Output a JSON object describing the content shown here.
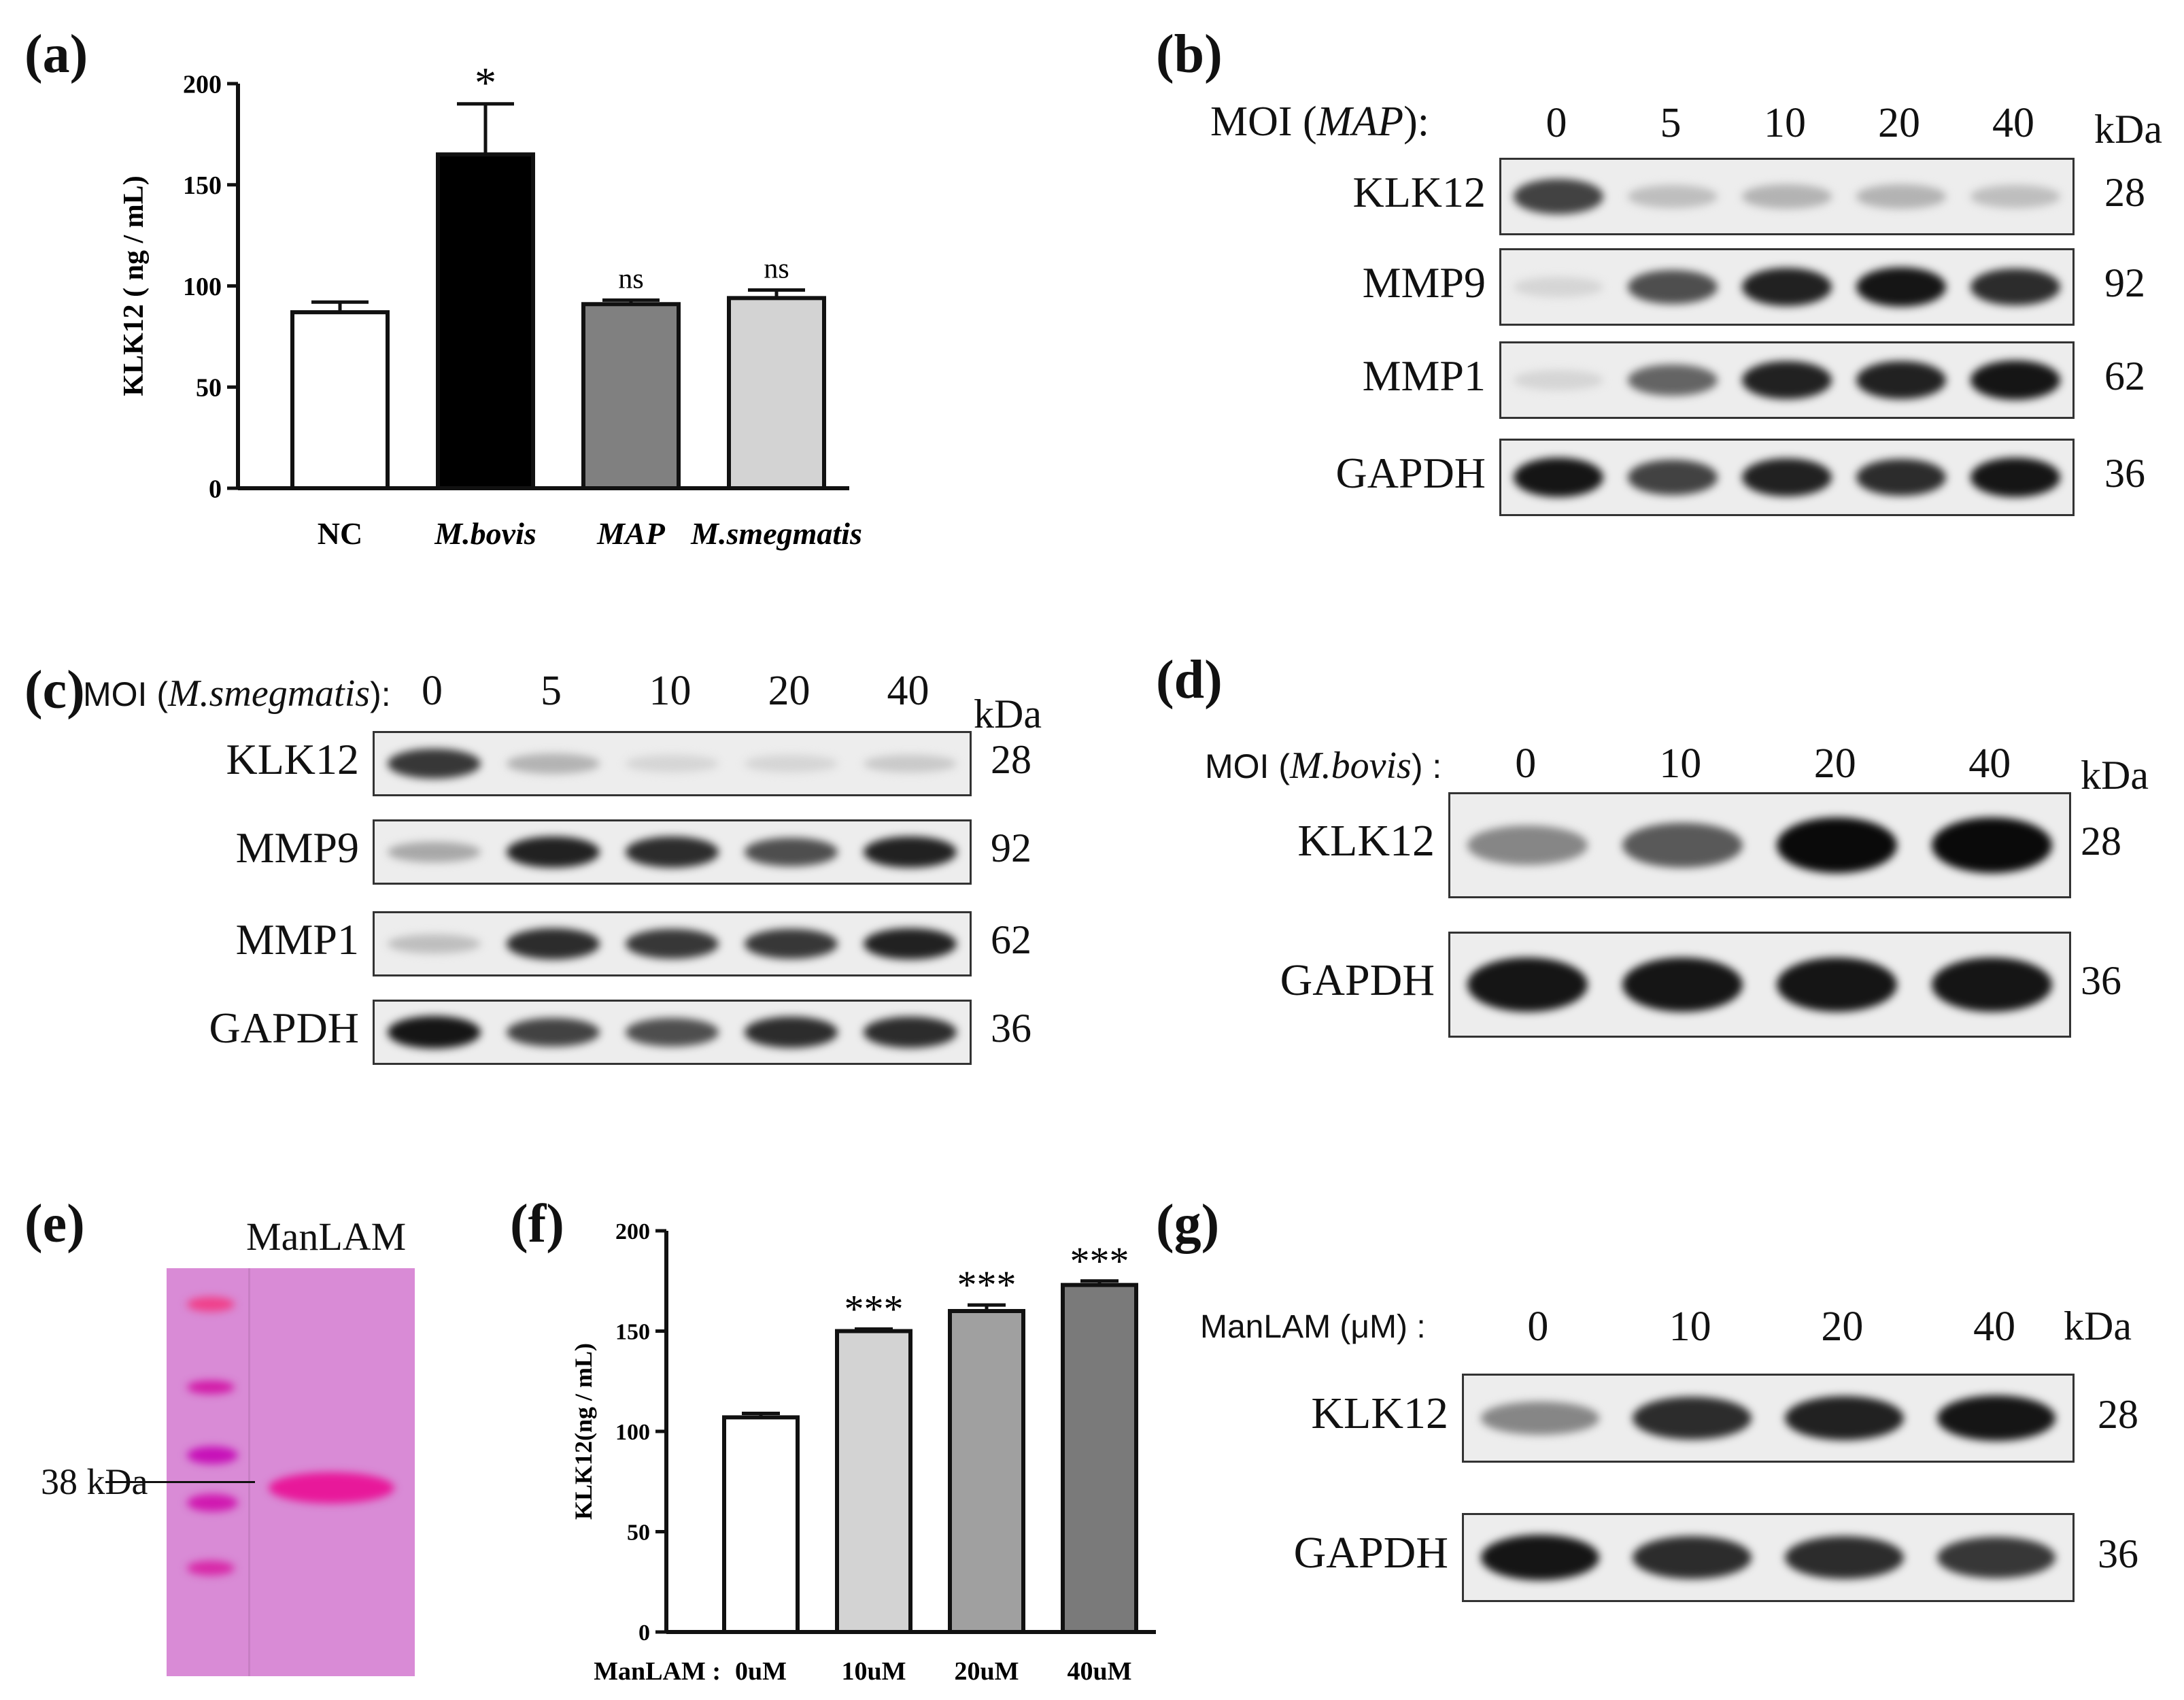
{
  "panels": {
    "a": {
      "label": "(a)",
      "chart_data": {
        "type": "bar",
        "categories": [
          "NC",
          "M.bovis",
          "MAP",
          "M.smegmatis"
        ],
        "categories_italic": [
          false,
          true,
          true,
          true
        ],
        "values": [
          87,
          165,
          91,
          94
        ],
        "errors": [
          5,
          25,
          2,
          4
        ],
        "significance": [
          "",
          "*",
          "ns",
          "ns"
        ],
        "bar_colors": [
          "#ffffff",
          "#000000",
          "#808080",
          "#d3d3d3"
        ],
        "ylabel": "KLK12 ( ng / mL)",
        "ylim": [
          0,
          200
        ],
        "yticks": [
          "0",
          "50",
          "100",
          "150",
          "200"
        ]
      }
    },
    "b": {
      "label": "(b)",
      "moi_prefix": "MOI (",
      "moi_strain": "MAP",
      "moi_suffix": "):",
      "lanes": [
        "0",
        "5",
        "10",
        "20",
        "40"
      ],
      "kda_header": "kDa",
      "rows": [
        {
          "name": "KLK12",
          "kda": "28",
          "intensity": [
            0.75,
            0.2,
            0.25,
            0.25,
            0.2
          ]
        },
        {
          "name": "MMP9",
          "kda": "92",
          "intensity": [
            0.1,
            0.7,
            0.9,
            0.95,
            0.85
          ]
        },
        {
          "name": "MMP1",
          "kda": "62",
          "intensity": [
            0.1,
            0.6,
            0.9,
            0.9,
            0.95
          ]
        },
        {
          "name": "GAPDH",
          "kda": "36",
          "intensity": [
            0.95,
            0.75,
            0.9,
            0.85,
            0.95
          ]
        }
      ]
    },
    "c": {
      "label": "(c)",
      "moi_prefix": "MOI (",
      "moi_strain": "M.smegmatis",
      "moi_suffix": "):",
      "lanes": [
        "0",
        "5",
        "10",
        "20",
        "40"
      ],
      "kda_header": "kDa",
      "rows": [
        {
          "name": "KLK12",
          "kda": "28",
          "intensity": [
            0.8,
            0.25,
            0.1,
            0.1,
            0.15
          ]
        },
        {
          "name": "MMP9",
          "kda": "92",
          "intensity": [
            0.3,
            0.9,
            0.85,
            0.7,
            0.9
          ]
        },
        {
          "name": "MMP1",
          "kda": "62",
          "intensity": [
            0.2,
            0.85,
            0.8,
            0.8,
            0.9
          ]
        },
        {
          "name": "GAPDH",
          "kda": "36",
          "intensity": [
            0.95,
            0.75,
            0.7,
            0.85,
            0.85
          ]
        }
      ]
    },
    "d": {
      "label": "(d)",
      "moi_prefix": "MOI (",
      "moi_strain": "M.bovis",
      "moi_suffix": ") :",
      "lanes": [
        "0",
        "10",
        "20",
        "40"
      ],
      "kda_header": "kDa",
      "rows": [
        {
          "name": "KLK12",
          "kda": "28",
          "intensity": [
            0.45,
            0.65,
            1.0,
            1.0
          ]
        },
        {
          "name": "GAPDH",
          "kda": "36",
          "intensity": [
            0.95,
            0.95,
            0.95,
            0.95
          ]
        }
      ]
    },
    "e": {
      "label": "(e)",
      "title": "ManLAM",
      "marker_label": "38 kDa",
      "gel_color": "#d98bd6",
      "band_color": "#e8189a"
    },
    "f": {
      "label": "(f)",
      "chart_data": {
        "type": "bar",
        "categories": [
          "0uM",
          "10uM",
          "20uM",
          "40uM"
        ],
        "x_prefix": "ManLAM :",
        "values": [
          107,
          150,
          160,
          173
        ],
        "errors": [
          2,
          1,
          3,
          2
        ],
        "significance": [
          "",
          "***",
          "***",
          "***"
        ],
        "bar_colors": [
          "#ffffff",
          "#d3d3d3",
          "#a0a0a0",
          "#7a7a7a"
        ],
        "ylabel": "KLK12(ng / mL)",
        "ylim": [
          0,
          200
        ],
        "yticks": [
          "0",
          "50",
          "100",
          "150",
          "200"
        ]
      }
    },
    "g": {
      "label": "(g)",
      "moi_text": "ManLAM (μM) :",
      "lanes": [
        "0",
        "10",
        "20",
        "40"
      ],
      "kda_header": "kDa",
      "rows": [
        {
          "name": "KLK12",
          "kda": "28",
          "intensity": [
            0.45,
            0.85,
            0.9,
            0.95
          ]
        },
        {
          "name": "GAPDH",
          "kda": "36",
          "intensity": [
            0.95,
            0.85,
            0.85,
            0.8
          ]
        }
      ]
    }
  }
}
